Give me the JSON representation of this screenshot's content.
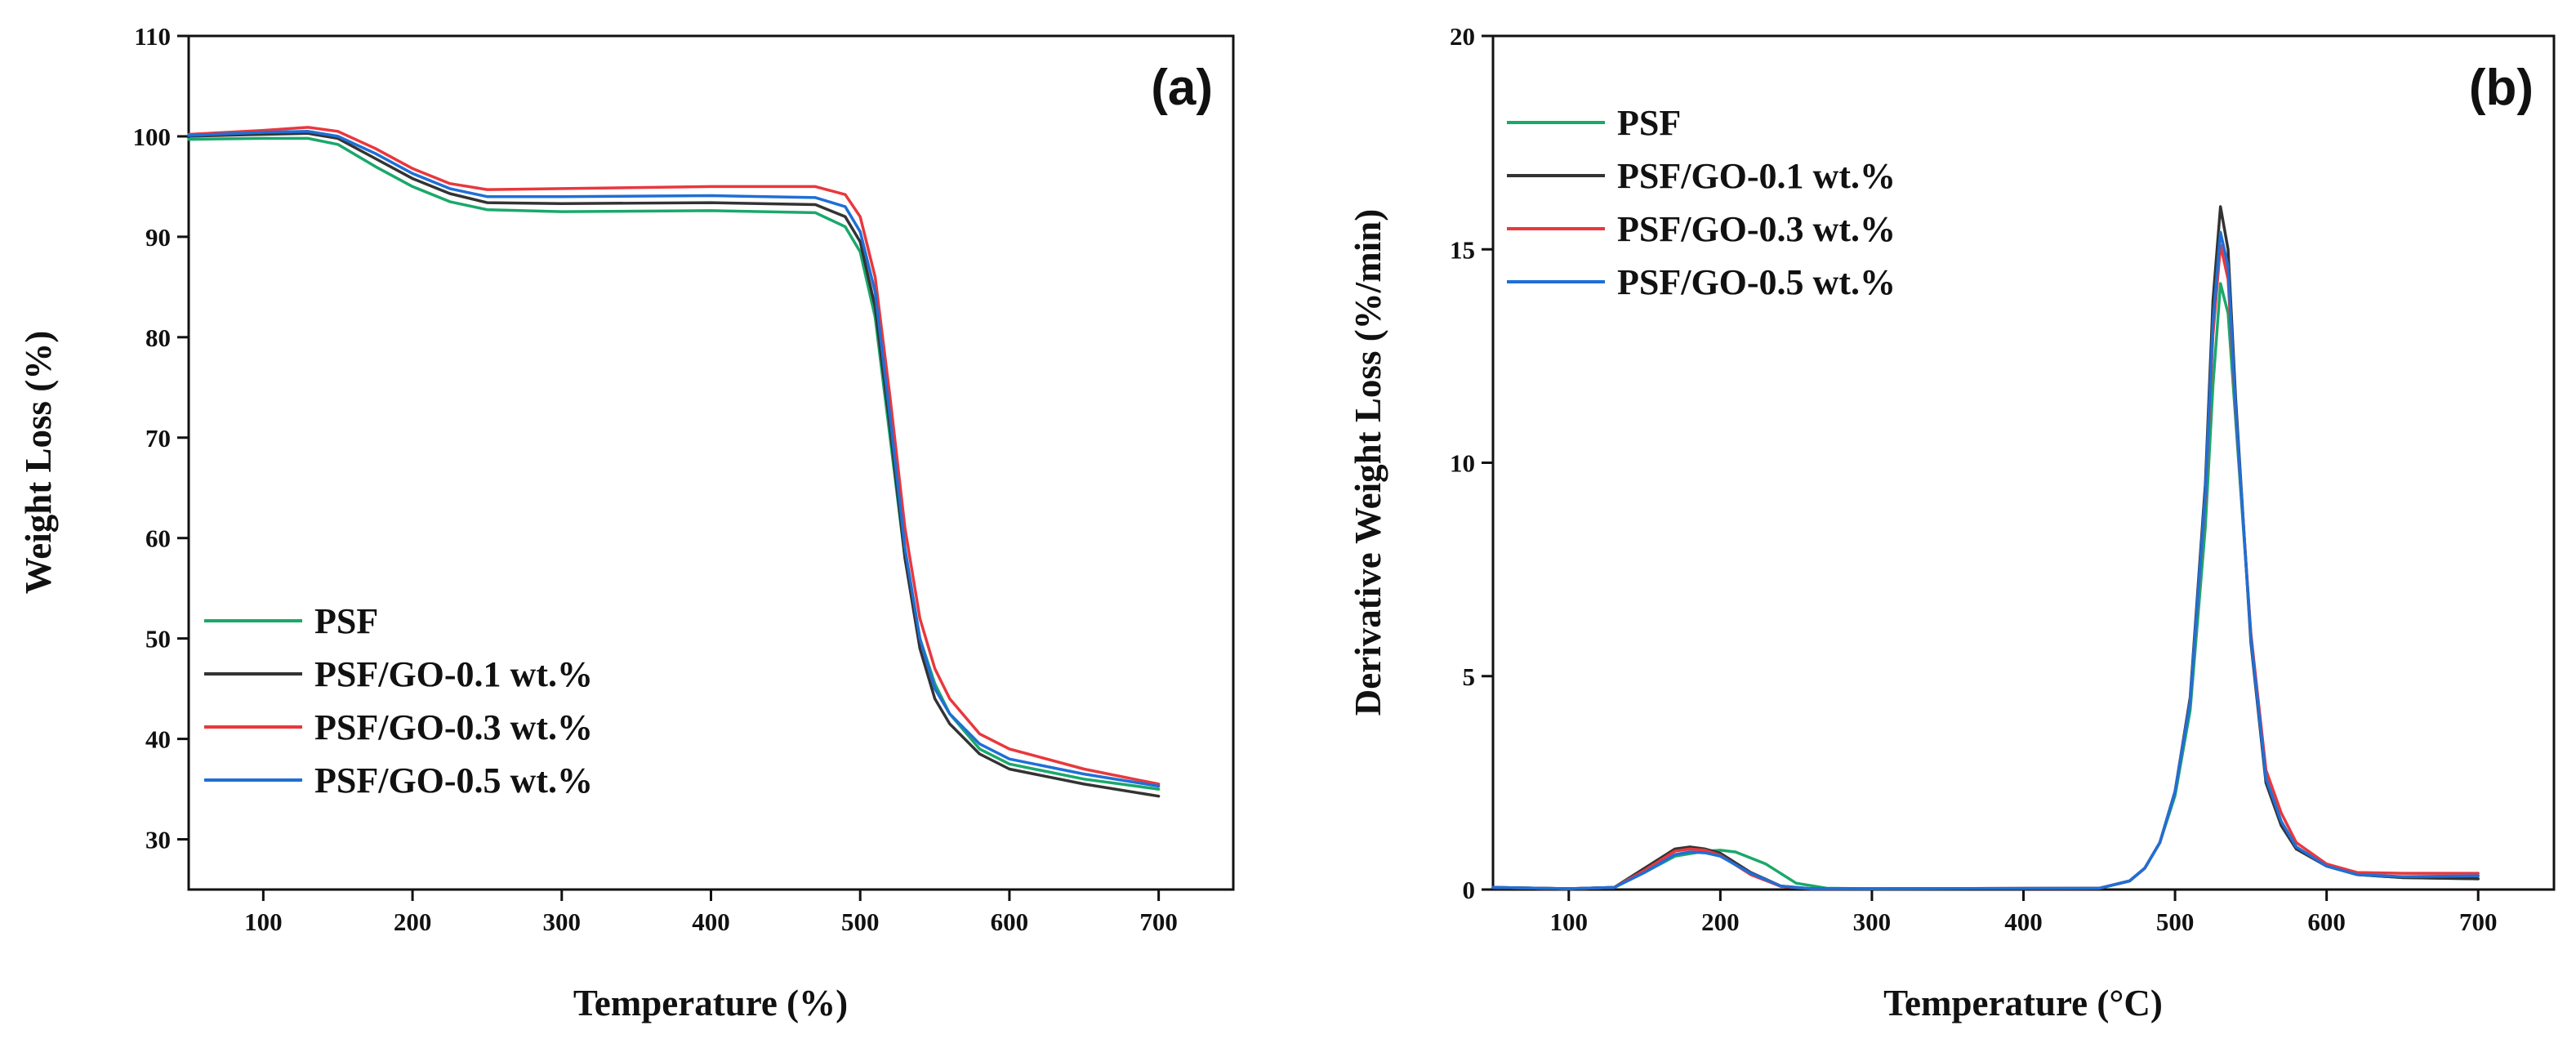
{
  "chart_data": [
    {
      "type": "line",
      "panel_label": "(a)",
      "xlabel": "Temperature (%)",
      "ylabel": "Weight Loss (%)",
      "xlim": [
        50,
        750
      ],
      "ylim": [
        25,
        110
      ],
      "xticks": [
        100,
        200,
        300,
        400,
        500,
        600,
        700
      ],
      "yticks": [
        30,
        40,
        50,
        60,
        70,
        80,
        90,
        100,
        110
      ],
      "legend_position": "bottom-left",
      "series": [
        {
          "name": "PSF",
          "color": "#1aa86b",
          "x": [
            50,
            100,
            130,
            150,
            175,
            200,
            225,
            250,
            300,
            400,
            470,
            490,
            500,
            510,
            520,
            530,
            540,
            550,
            560,
            580,
            600,
            650,
            700
          ],
          "y": [
            99.7,
            99.8,
            99.8,
            99.2,
            97.0,
            95.0,
            93.5,
            92.7,
            92.5,
            92.6,
            92.4,
            91.0,
            88.5,
            82.0,
            70.0,
            58.0,
            50.0,
            45.5,
            42.5,
            39.0,
            37.5,
            36.0,
            35.0
          ]
        },
        {
          "name": "PSF/GO-0.1 wt.%",
          "color": "#333333",
          "x": [
            50,
            100,
            130,
            150,
            175,
            200,
            225,
            250,
            300,
            400,
            470,
            490,
            500,
            510,
            520,
            530,
            540,
            550,
            560,
            580,
            600,
            650,
            700
          ],
          "y": [
            100.0,
            100.2,
            100.3,
            99.8,
            97.8,
            95.8,
            94.3,
            93.4,
            93.3,
            93.4,
            93.2,
            92.0,
            89.5,
            83.0,
            71.0,
            58.0,
            49.0,
            44.0,
            41.5,
            38.5,
            37.0,
            35.5,
            34.3
          ]
        },
        {
          "name": "PSF/GO-0.3 wt.%",
          "color": "#e8383d",
          "x": [
            50,
            100,
            130,
            150,
            175,
            200,
            225,
            250,
            300,
            400,
            470,
            490,
            500,
            510,
            520,
            530,
            540,
            550,
            560,
            580,
            600,
            650,
            700
          ],
          "y": [
            100.2,
            100.6,
            100.9,
            100.5,
            98.8,
            96.8,
            95.3,
            94.7,
            94.8,
            95.0,
            95.0,
            94.2,
            92.0,
            86.0,
            74.0,
            61.0,
            52.0,
            47.0,
            44.0,
            40.5,
            39.0,
            37.0,
            35.5
          ]
        },
        {
          "name": "PSF/GO-0.5 wt.%",
          "color": "#1f6fd6",
          "x": [
            50,
            100,
            130,
            150,
            175,
            200,
            225,
            250,
            300,
            400,
            470,
            490,
            500,
            510,
            520,
            530,
            540,
            550,
            560,
            580,
            600,
            650,
            700
          ],
          "y": [
            100.1,
            100.4,
            100.5,
            100.0,
            98.3,
            96.3,
            94.8,
            94.0,
            94.0,
            94.1,
            93.9,
            93.0,
            90.5,
            84.5,
            72.0,
            59.0,
            50.0,
            45.0,
            42.5,
            39.5,
            38.0,
            36.5,
            35.3
          ]
        }
      ]
    },
    {
      "type": "line",
      "panel_label": "(b)",
      "xlabel": "Temperature (°C)",
      "ylabel": "Derivative Weight Loss (%/min)",
      "xlim": [
        50,
        750
      ],
      "ylim": [
        0,
        20
      ],
      "xticks": [
        100,
        200,
        300,
        400,
        500,
        600,
        700
      ],
      "yticks": [
        0,
        5,
        10,
        15,
        20
      ],
      "legend_position": "top-left",
      "series": [
        {
          "name": "PSF",
          "color": "#1aa86b",
          "x": [
            50,
            100,
            130,
            150,
            170,
            190,
            200,
            210,
            230,
            250,
            270,
            300,
            450,
            470,
            480,
            490,
            500,
            510,
            520,
            525,
            530,
            535,
            540,
            550,
            560,
            570,
            580,
            600,
            620,
            650,
            700
          ],
          "y": [
            0.05,
            0.02,
            0.05,
            0.4,
            0.78,
            0.9,
            0.92,
            0.88,
            0.6,
            0.15,
            0.03,
            0.02,
            0.03,
            0.2,
            0.5,
            1.1,
            2.2,
            4.2,
            8.5,
            11.8,
            14.2,
            13.5,
            11.0,
            6.0,
            2.6,
            1.6,
            1.0,
            0.55,
            0.35,
            0.28,
            0.25
          ]
        },
        {
          "name": "PSF/GO-0.1 wt.%",
          "color": "#333333",
          "x": [
            50,
            100,
            130,
            150,
            170,
            180,
            190,
            200,
            220,
            240,
            260,
            300,
            450,
            470,
            480,
            490,
            500,
            510,
            520,
            525,
            530,
            535,
            540,
            550,
            560,
            570,
            580,
            600,
            620,
            650,
            700
          ],
          "y": [
            0.05,
            0.02,
            0.05,
            0.5,
            0.95,
            1.0,
            0.95,
            0.85,
            0.4,
            0.08,
            0.02,
            0.02,
            0.03,
            0.2,
            0.5,
            1.1,
            2.3,
            4.5,
            9.5,
            13.8,
            16.0,
            15.0,
            11.5,
            5.8,
            2.5,
            1.5,
            0.95,
            0.55,
            0.35,
            0.28,
            0.25
          ]
        },
        {
          "name": "PSF/GO-0.3 wt.%",
          "color": "#e8383d",
          "x": [
            50,
            100,
            130,
            150,
            170,
            180,
            190,
            200,
            220,
            240,
            260,
            300,
            450,
            470,
            480,
            490,
            500,
            510,
            520,
            525,
            530,
            535,
            540,
            550,
            560,
            570,
            580,
            600,
            620,
            650,
            700
          ],
          "y": [
            0.05,
            0.02,
            0.05,
            0.45,
            0.9,
            0.95,
            0.92,
            0.8,
            0.35,
            0.07,
            0.02,
            0.02,
            0.03,
            0.2,
            0.5,
            1.1,
            2.3,
            4.4,
            9.2,
            13.0,
            15.1,
            14.3,
            11.2,
            6.0,
            2.8,
            1.8,
            1.1,
            0.6,
            0.4,
            0.38,
            0.38
          ]
        },
        {
          "name": "PSF/GO-0.5 wt.%",
          "color": "#1f6fd6",
          "x": [
            50,
            100,
            130,
            150,
            170,
            180,
            190,
            200,
            220,
            240,
            260,
            300,
            450,
            470,
            480,
            490,
            500,
            510,
            520,
            525,
            530,
            535,
            540,
            550,
            560,
            570,
            580,
            600,
            620,
            650,
            700
          ],
          "y": [
            0.05,
            0.02,
            0.05,
            0.4,
            0.82,
            0.88,
            0.86,
            0.78,
            0.38,
            0.08,
            0.02,
            0.02,
            0.03,
            0.2,
            0.5,
            1.1,
            2.3,
            4.4,
            9.3,
            13.3,
            15.4,
            14.6,
            11.3,
            5.9,
            2.6,
            1.6,
            1.0,
            0.55,
            0.35,
            0.3,
            0.32
          ]
        }
      ]
    }
  ]
}
